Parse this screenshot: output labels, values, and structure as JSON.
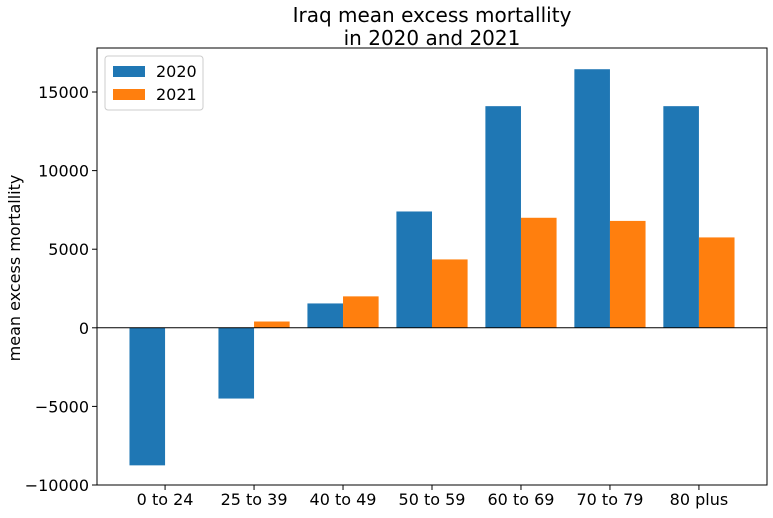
{
  "chart_data": {
    "type": "bar",
    "title_line1": "Iraq mean excess mortallity",
    "title_line2": "in 2020 and 2021",
    "ylabel": "mean excess mortallity",
    "xlabel": "",
    "categories": [
      "0 to 24",
      "25 to 39",
      "40 to 49",
      "50 to 59",
      "60 to 69",
      "70 to 79",
      "80 plus"
    ],
    "series": [
      {
        "name": "2020",
        "color": "#1f77b4",
        "values": [
          -8750,
          -4500,
          1550,
          7400,
          14100,
          16450,
          14100
        ]
      },
      {
        "name": "2021",
        "color": "#ff7f0e",
        "values": [
          0,
          400,
          2000,
          4350,
          7000,
          6800,
          5750
        ]
      }
    ],
    "ylim": [
      -10000,
      17800
    ],
    "yticks": [
      -10000,
      -5000,
      0,
      5000,
      10000,
      15000
    ],
    "ytick_labels": [
      "−10000",
      "−5000",
      "0",
      "5000",
      "10000",
      "15000"
    ],
    "zero_line": true,
    "grid": false,
    "legend_position": "top-left"
  }
}
